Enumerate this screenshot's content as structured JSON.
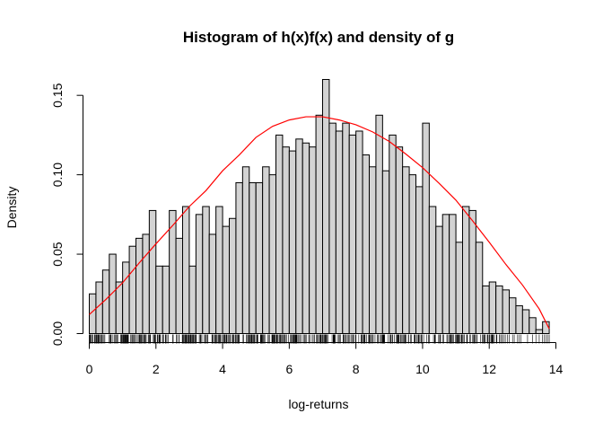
{
  "chart_data": {
    "type": "bar",
    "title": "Histogram of h(x)f(x) and density of g",
    "xlabel": "log-returns",
    "ylabel": "Density",
    "xlim": [
      0,
      14
    ],
    "ylim": [
      0,
      0.16
    ],
    "x_ticks": [
      "0",
      "2",
      "4",
      "6",
      "8",
      "10",
      "12",
      "14"
    ],
    "y_ticks": [
      "0.00",
      "0.05",
      "0.10",
      "0.15"
    ],
    "bin_width": 0.2,
    "histogram": {
      "bin_starts": [
        0.0,
        0.2,
        0.4,
        0.6,
        0.8,
        1.0,
        1.2,
        1.4,
        1.6,
        1.8,
        2.0,
        2.2,
        2.4,
        2.6,
        2.8,
        3.0,
        3.2,
        3.4,
        3.6,
        3.8,
        4.0,
        4.2,
        4.4,
        4.6,
        4.8,
        5.0,
        5.2,
        5.4,
        5.6,
        5.8,
        6.0,
        6.2,
        6.4,
        6.6,
        6.8,
        7.0,
        7.2,
        7.4,
        7.6,
        7.8,
        8.0,
        8.2,
        8.4,
        8.6,
        8.8,
        9.0,
        9.2,
        9.4,
        9.6,
        9.8,
        10.0,
        10.2,
        10.4,
        10.6,
        10.8,
        11.0,
        11.2,
        11.4,
        11.6,
        11.8,
        12.0,
        12.2,
        12.4,
        12.6,
        12.8,
        13.0,
        13.2,
        13.4,
        13.6
      ],
      "densities": [
        0.025,
        0.0325,
        0.04,
        0.05,
        0.0325,
        0.045,
        0.055,
        0.06,
        0.0625,
        0.0775,
        0.0425,
        0.0425,
        0.0775,
        0.06,
        0.08,
        0.0425,
        0.075,
        0.08,
        0.0625,
        0.08,
        0.0675,
        0.0725,
        0.095,
        0.105,
        0.095,
        0.095,
        0.105,
        0.1,
        0.125,
        0.1175,
        0.115,
        0.1225,
        0.12,
        0.1175,
        0.1375,
        0.16,
        0.1325,
        0.1275,
        0.1325,
        0.125,
        0.1275,
        0.1125,
        0.105,
        0.1375,
        0.1025,
        0.125,
        0.1175,
        0.105,
        0.1,
        0.0925,
        0.1325,
        0.08,
        0.0675,
        0.075,
        0.075,
        0.0575,
        0.08,
        0.0775,
        0.0575,
        0.03,
        0.0325,
        0.03,
        0.0275,
        0.0225,
        0.0175,
        0.015,
        0.01,
        0.0025,
        0.0075
      ],
      "fill": "#d3d3d3",
      "stroke": "#000000"
    },
    "density_curve": {
      "color": "#ff0000",
      "x": [
        0.0,
        0.5,
        1.0,
        1.5,
        2.0,
        2.5,
        3.0,
        3.5,
        4.0,
        4.5,
        5.0,
        5.5,
        6.0,
        6.5,
        7.0,
        7.5,
        8.0,
        8.5,
        9.0,
        9.5,
        10.0,
        10.5,
        11.0,
        11.5,
        12.0,
        12.5,
        13.0,
        13.5,
        13.8
      ],
      "y": [
        0.012,
        0.0215,
        0.032,
        0.0445,
        0.0565,
        0.068,
        0.08,
        0.09,
        0.1025,
        0.1125,
        0.1235,
        0.1305,
        0.1345,
        0.1365,
        0.1365,
        0.1345,
        0.1315,
        0.127,
        0.121,
        0.113,
        0.1045,
        0.0945,
        0.084,
        0.071,
        0.0575,
        0.0435,
        0.0305,
        0.0155,
        0.003
      ]
    },
    "rug": {
      "color": "#000000",
      "dense_range": [
        0.0,
        12.5
      ],
      "sparse_ticks": [
        12.55,
        12.6,
        12.7,
        12.75,
        12.85,
        12.9,
        12.95,
        13.15,
        13.3,
        13.4,
        13.5,
        13.6,
        13.65,
        13.7,
        13.75,
        13.8
      ]
    },
    "grid": false,
    "legend": "none"
  }
}
